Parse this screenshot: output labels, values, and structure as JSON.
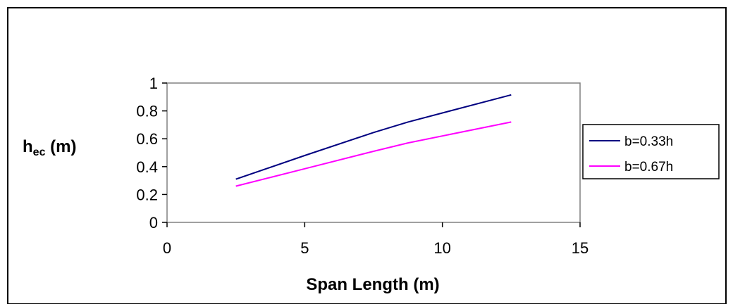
{
  "chart_data": {
    "type": "line",
    "title": "",
    "xlabel": "Span Length (m)",
    "ylabel_main": "h",
    "ylabel_sub": "ec",
    "ylabel_unit": " (m)",
    "xlim": [
      0,
      15
    ],
    "ylim": [
      0,
      1
    ],
    "x_ticks": [
      0,
      5,
      10,
      15
    ],
    "x_tick_labels": [
      "0",
      "5",
      "10",
      "15"
    ],
    "y_ticks": [
      0,
      0.2,
      0.4,
      0.6,
      0.8,
      1
    ],
    "y_tick_labels": [
      "0",
      "0.2",
      "0.4",
      "0.6",
      "0.8",
      "1"
    ],
    "grid": false,
    "legend_position": "right",
    "series": [
      {
        "name": "b=0.33h",
        "color": "#000080",
        "x": [
          2.5,
          5,
          7.5,
          8.75,
          12.5
        ],
        "y": [
          0.31,
          0.48,
          0.645,
          0.72,
          0.915
        ]
      },
      {
        "name": "b=0.67h",
        "color": "#ff00ff",
        "x": [
          2.5,
          5,
          7.5,
          8.75,
          12.5
        ],
        "y": [
          0.26,
          0.385,
          0.51,
          0.57,
          0.72
        ]
      }
    ]
  }
}
